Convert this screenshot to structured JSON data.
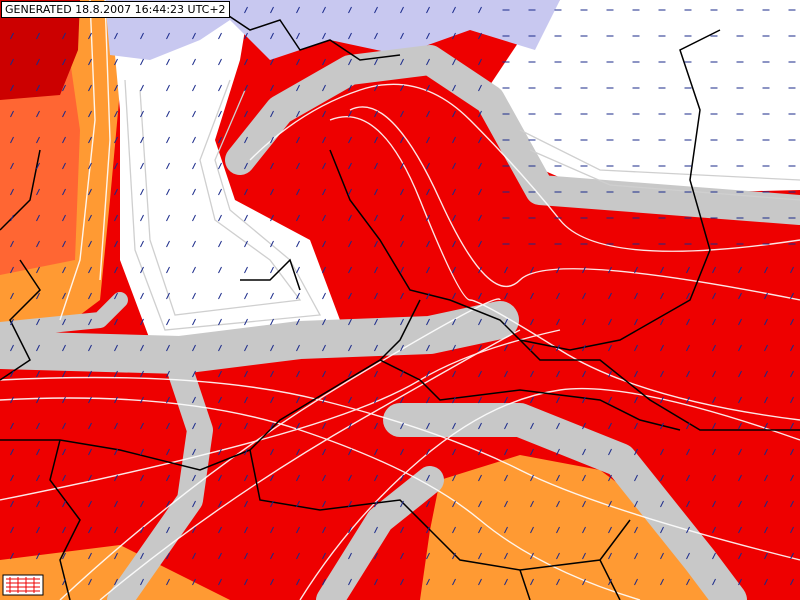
{
  "header": {
    "generated": "GENERATED 18.8.2007 16:44:23 UTC+2"
  }
}
